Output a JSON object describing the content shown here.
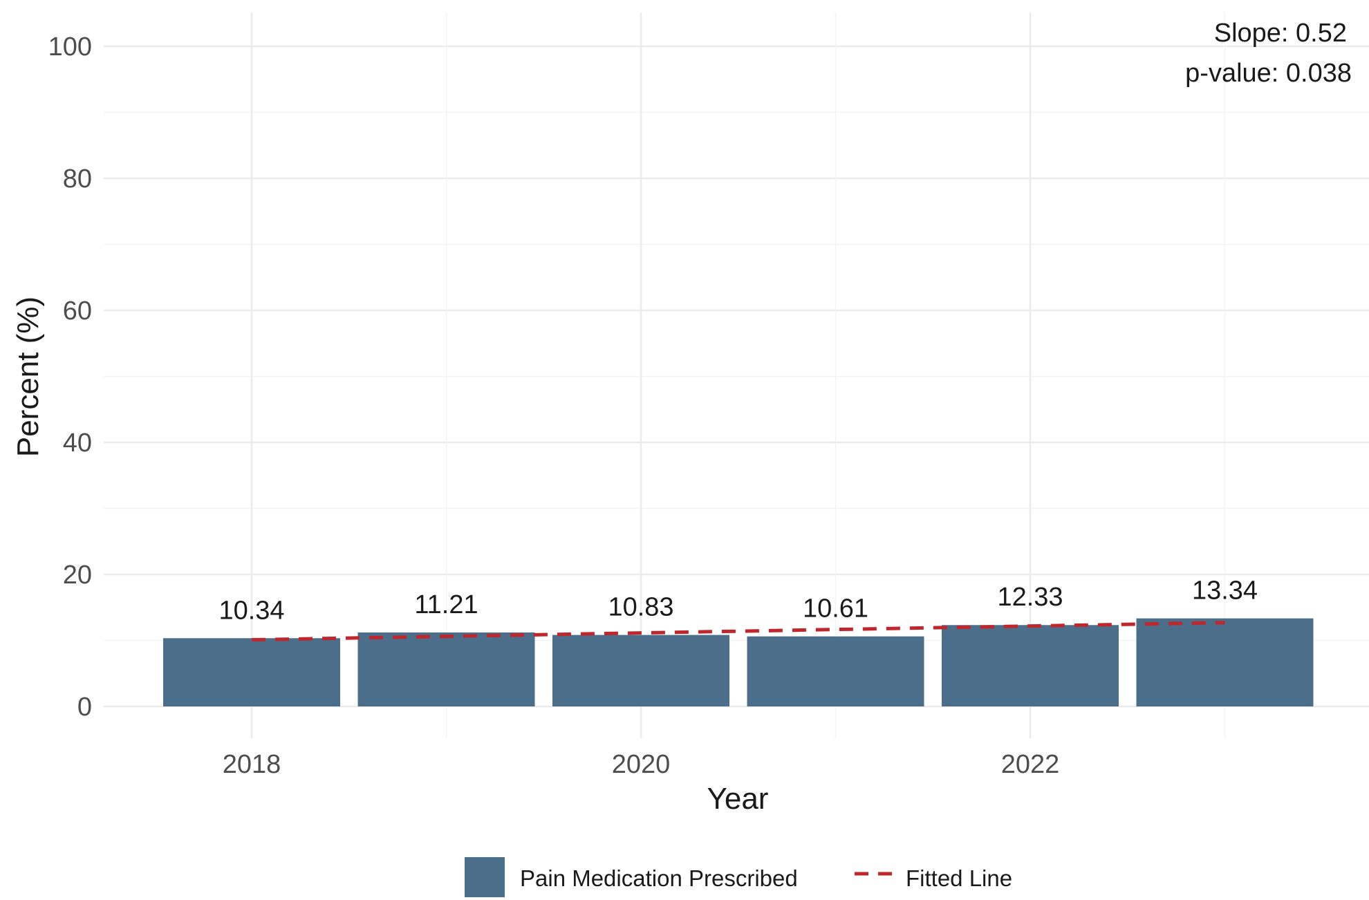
{
  "chart_data": {
    "type": "bar",
    "title": "",
    "xlabel": "Year",
    "ylabel": "Percent (%)",
    "x": [
      2018,
      2019,
      2020,
      2021,
      2022,
      2023
    ],
    "x_tick_labels": [
      "2018",
      "2020",
      "2022"
    ],
    "ylim": [
      0,
      100
    ],
    "y_ticks": [
      0,
      20,
      40,
      60,
      80,
      100
    ],
    "grid": true,
    "series": [
      {
        "name": "Pain Medication Prescribed",
        "kind": "bar",
        "color": "#4b6e8a",
        "values": [
          10.34,
          11.21,
          10.83,
          10.61,
          12.33,
          13.34
        ],
        "labels": [
          "10.34",
          "11.21",
          "10.83",
          "10.61",
          "12.33",
          "13.34"
        ]
      },
      {
        "name": "Fitted Line",
        "kind": "line",
        "style": "dashed",
        "color": "#c0272d",
        "values": [
          10.1,
          10.62,
          11.14,
          11.66,
          12.18,
          12.7
        ]
      }
    ],
    "annotations": [
      "Slope: 0.52",
      "p-value: 0.038"
    ],
    "legend": {
      "placement": "bottom"
    }
  }
}
